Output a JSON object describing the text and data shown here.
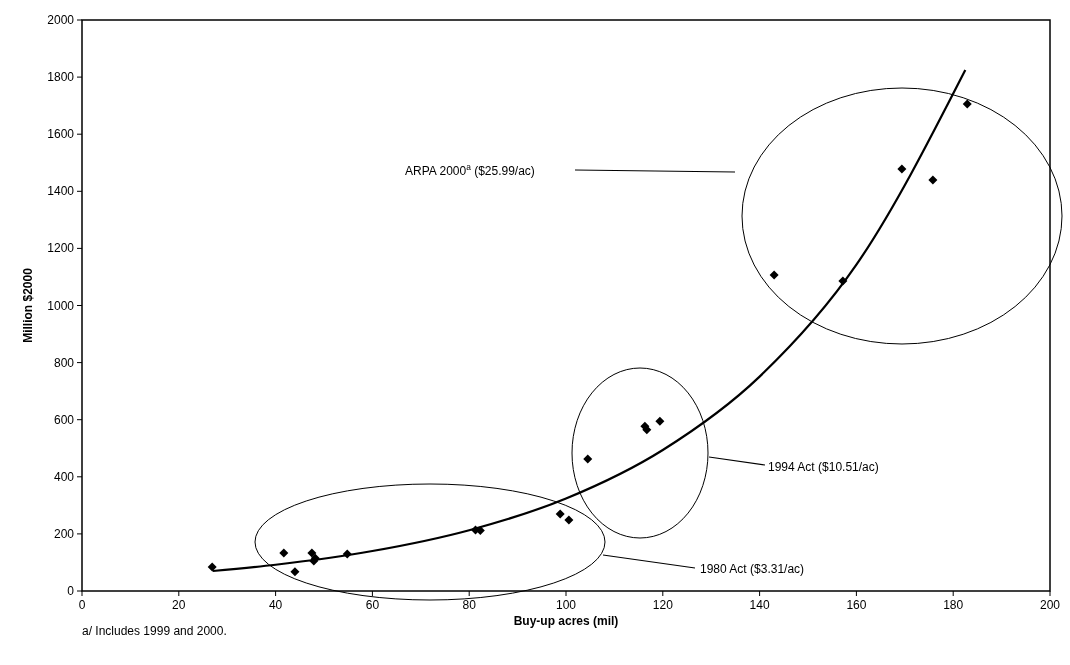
{
  "chart_data": {
    "type": "scatter",
    "xlabel": "Buy-up acres (mil)",
    "ylabel": "Million $2000",
    "xlim": [
      0,
      200
    ],
    "xticks": [
      0,
      20,
      40,
      60,
      80,
      100,
      120,
      140,
      160,
      180,
      200
    ],
    "ylim": [
      0,
      2000
    ],
    "yticks": [
      0,
      200,
      400,
      600,
      800,
      1000,
      1200,
      1400,
      1600,
      1800,
      2000
    ],
    "series": [
      {
        "color": "#000000",
        "marker": "diamond",
        "x": [
          26.9,
          41.7,
          44,
          47.5,
          47.9,
          48.2,
          54.8,
          81.3,
          82.3,
          98.8,
          100.6,
          104.5,
          116.3,
          116.7,
          119.4,
          143,
          157.2,
          169.4,
          175.8,
          182.9
        ],
        "values": [
          84,
          133,
          67,
          133,
          105,
          115,
          130,
          214,
          212,
          270,
          249,
          462,
          577,
          565,
          595,
          1107,
          1086,
          1478,
          1440,
          1706
        ]
      },
      {
        "type": "line",
        "color": "#000000",
        "marker": "none",
        "x": [
          27,
          40,
          60,
          80,
          100,
          120,
          140,
          160,
          182.5
        ],
        "values": [
          70,
          92,
          140,
          213,
          324,
          494,
          751,
          1143,
          1825
        ]
      }
    ],
    "annotations": [
      "ARPA 2000$^{a}$ ($25.99/ac)",
      "1994 Act ($10.51/ac)",
      "1980 Act ($3.31/ac)",
      "a/ Includes 1999 and 2000."
    ]
  }
}
